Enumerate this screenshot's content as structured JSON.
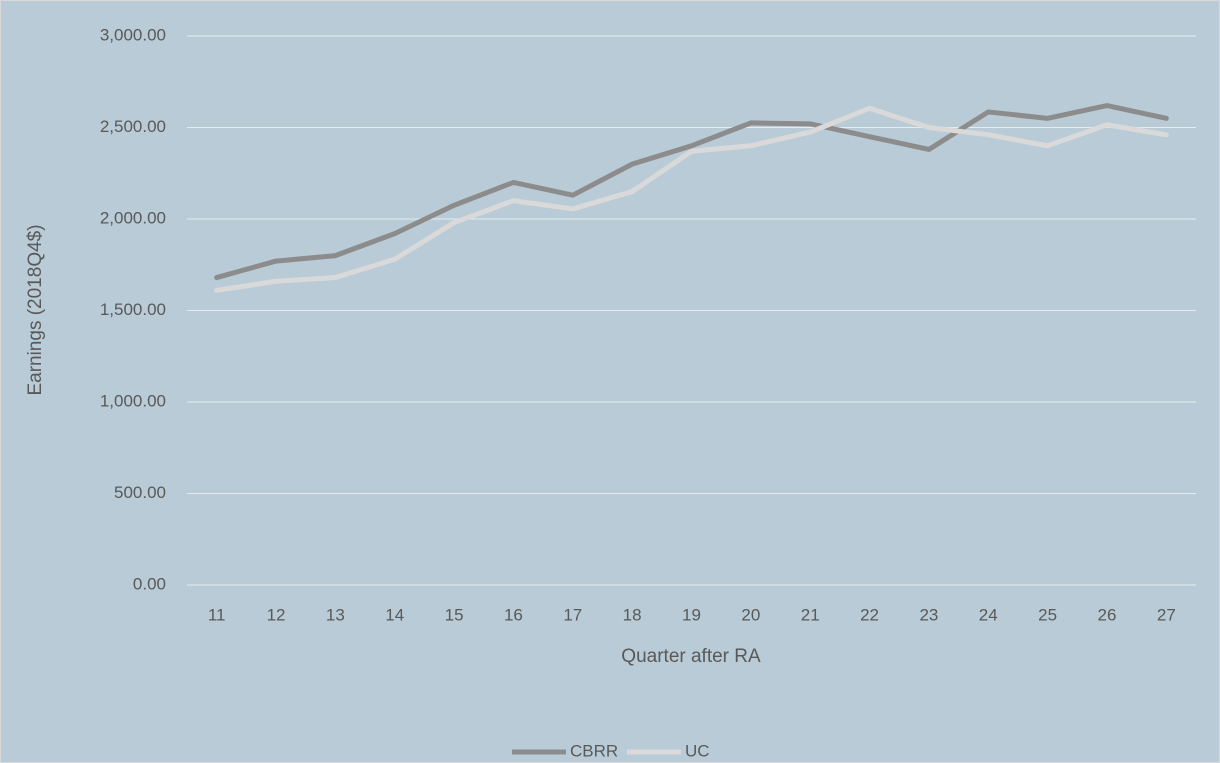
{
  "chart_data": {
    "type": "line",
    "x_label": "Quarter after RA",
    "y_label": "Earnings (2018Q4$)",
    "categories": [
      "11",
      "12",
      "13",
      "14",
      "15",
      "16",
      "17",
      "18",
      "19",
      "20",
      "21",
      "22",
      "23",
      "24",
      "25",
      "26",
      "27"
    ],
    "series": [
      {
        "name": "CBRR",
        "color": "#8c8c8c",
        "values": [
          1680,
          1770,
          1800,
          1920,
          2075,
          2200,
          2130,
          2300,
          2400,
          2525,
          2520,
          2450,
          2380,
          2585,
          2550,
          2620,
          2550
        ]
      },
      {
        "name": "UC",
        "color": "#d9d9d9",
        "values": [
          1610,
          1660,
          1680,
          1780,
          1980,
          2100,
          2055,
          2150,
          2370,
          2400,
          2475,
          2605,
          2500,
          2460,
          2400,
          2515,
          2460
        ]
      }
    ],
    "ylim": [
      0,
      3000
    ],
    "yticks": [
      {
        "value": 0,
        "label": "0.00"
      },
      {
        "value": 500,
        "label": "500.00"
      },
      {
        "value": 1000,
        "label": "1,000.00"
      },
      {
        "value": 1500,
        "label": "1,500.00"
      },
      {
        "value": 2000,
        "label": "2,000.00"
      },
      {
        "value": 2500,
        "label": "2,500.00"
      },
      {
        "value": 3000,
        "label": "3,000.00"
      }
    ],
    "grid": true,
    "legend": "bottom"
  }
}
